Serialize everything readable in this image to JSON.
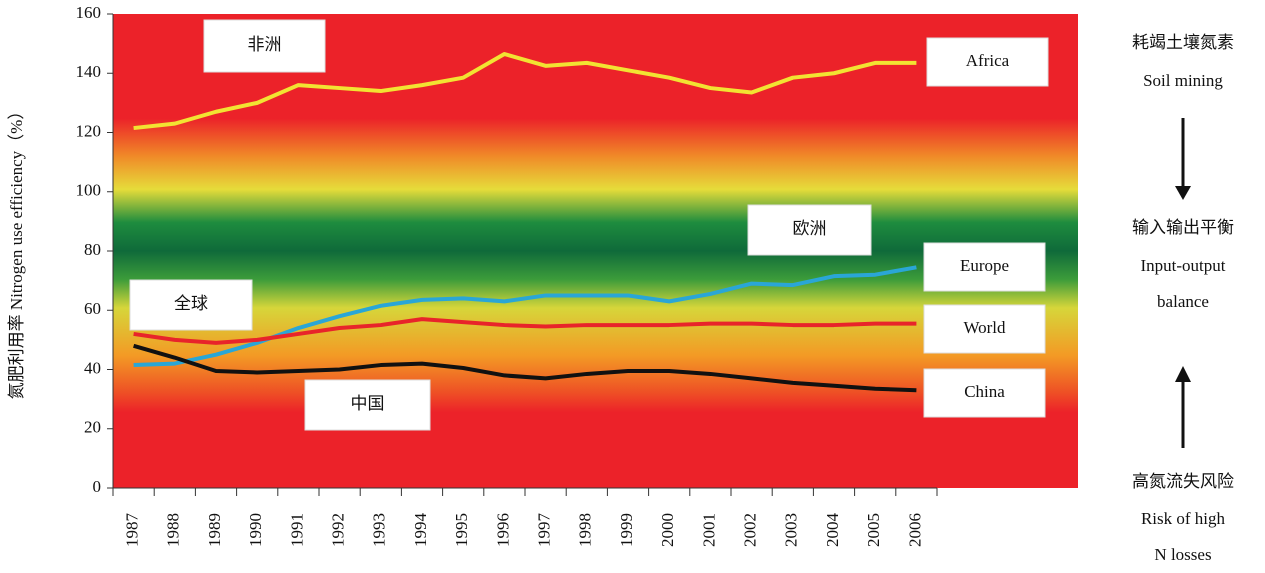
{
  "chart_data": {
    "type": "line",
    "y_label": "氮肥利用率 Nitrogen use efficiency（%）",
    "categories": [
      "1987",
      "1988",
      "1989",
      "1990",
      "1991",
      "1992",
      "1993",
      "1994",
      "1995",
      "1996",
      "1997",
      "1998",
      "1999",
      "2000",
      "2001",
      "2002",
      "2003",
      "2004",
      "2005",
      "2006"
    ],
    "ylim": [
      0,
      160
    ],
    "yticks": [
      0,
      20,
      40,
      60,
      80,
      100,
      120,
      140,
      160
    ],
    "series": [
      {
        "name": "Africa",
        "color": "#f2e332",
        "values": [
          121.5,
          123,
          127,
          130,
          136,
          135,
          134,
          136,
          138.5,
          146.5,
          142.5,
          143.5,
          141,
          138.5,
          135,
          133.5,
          138.5,
          140,
          143.5,
          143.5
        ]
      },
      {
        "name": "Europe",
        "color": "#2aa6d6",
        "values": [
          41.5,
          42,
          45,
          49,
          54,
          58,
          61.5,
          63.5,
          64,
          63,
          65,
          65,
          65,
          63,
          65.5,
          69,
          68.5,
          71.5,
          72,
          74.5
        ]
      },
      {
        "name": "World",
        "color": "#e8242a",
        "values": [
          52,
          50,
          49,
          50,
          52,
          54,
          55,
          57,
          56,
          55,
          54.5,
          55,
          55,
          55,
          55.5,
          55.5,
          55,
          55,
          55.5,
          55.5
        ]
      },
      {
        "name": "China",
        "color": "#111111",
        "values": [
          48,
          44,
          39.5,
          39,
          39.5,
          40,
          41.5,
          42,
          40.5,
          38,
          37,
          38.5,
          39.5,
          39.5,
          38.5,
          37,
          35.5,
          34.5,
          33.5,
          33
        ]
      }
    ],
    "annotations": [
      "非洲",
      "欧洲",
      "全球",
      "中国"
    ],
    "side_notes": [
      "耗竭土壤氮素",
      "Soil mining",
      "输入输出平衡",
      "Input-output",
      "balance",
      "高氮流失风险",
      "Risk of high",
      "N losses"
    ]
  }
}
